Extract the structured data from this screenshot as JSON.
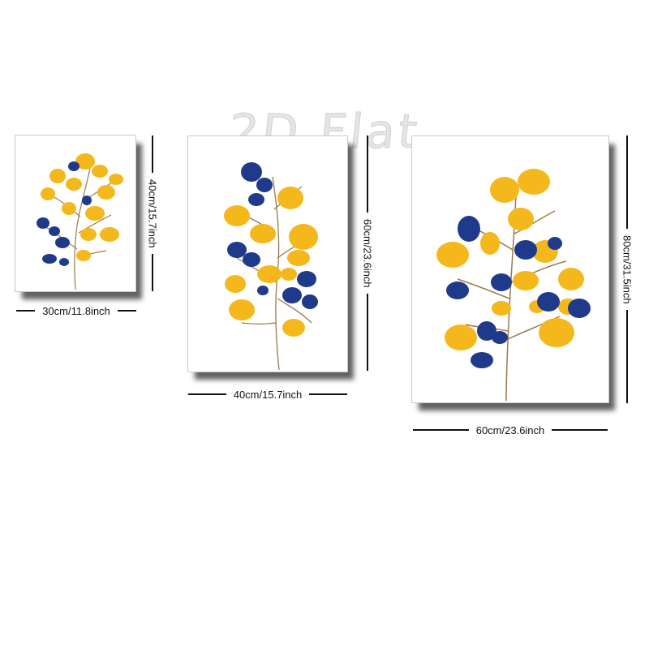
{
  "watermark": "2D Flat",
  "colors": {
    "leaf_yellow": "#f4b81c",
    "leaf_blue": "#1f3a8a",
    "stem": "#8a6a3e",
    "shadow": "#000000"
  },
  "panels": [
    {
      "id": "small",
      "width_label": "30cm/11.8inch",
      "height_label": "40cm/15.7inch"
    },
    {
      "id": "medium",
      "width_label": "40cm/15.7inch",
      "height_label": "60cm/23.6inch"
    },
    {
      "id": "large",
      "width_label": "60cm/23.6inch",
      "height_label": "80cm/31.5inch"
    }
  ]
}
